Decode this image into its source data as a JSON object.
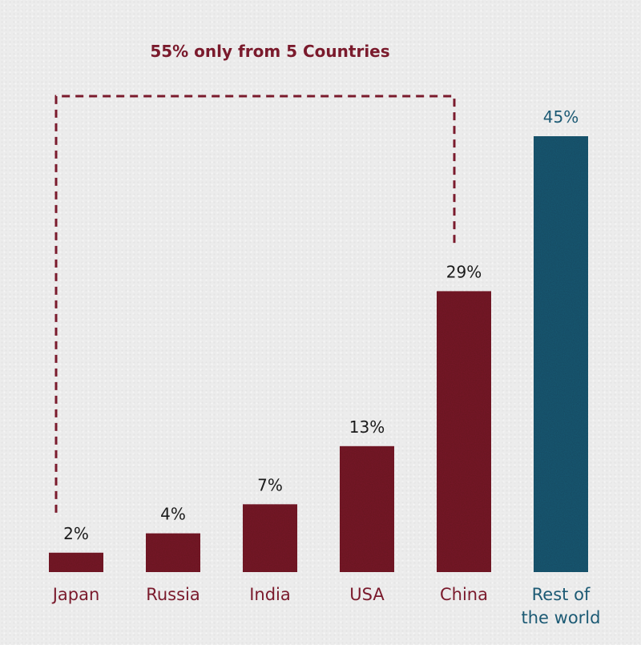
{
  "chart_data": {
    "type": "bar",
    "title": "",
    "xlabel": "",
    "ylabel": "",
    "ylim": [
      0,
      45
    ],
    "grid": false,
    "categories": [
      "Japan",
      "Russia",
      "India",
      "USA",
      "China",
      "Rest of the world"
    ],
    "category_lines": [
      [
        "Japan"
      ],
      [
        "Russia"
      ],
      [
        "India"
      ],
      [
        "USA"
      ],
      [
        "China"
      ],
      [
        "Rest of",
        "the world"
      ]
    ],
    "values": [
      2,
      4,
      7,
      13,
      29,
      45
    ],
    "value_labels": [
      "2%",
      "4%",
      "7%",
      "13%",
      "29%",
      "45%"
    ],
    "bar_colors": [
      "#7a1a2c",
      "#7a1a2c",
      "#7a1a2c",
      "#7a1a2c",
      "#7a1a2c",
      "#1c5a74"
    ],
    "annotation": {
      "text": "55% only from 5 Countries",
      "bracket_from": "Japan",
      "bracket_to": "China",
      "style": "dashed"
    },
    "colors": {
      "bar_primary": "#7a1a2c",
      "bar_highlight": "#1c5a74",
      "annotation": "#7a1a2c",
      "value_label": "#1a1a1a",
      "highlight_label": "#1c5a74",
      "background": "#ececec"
    }
  }
}
